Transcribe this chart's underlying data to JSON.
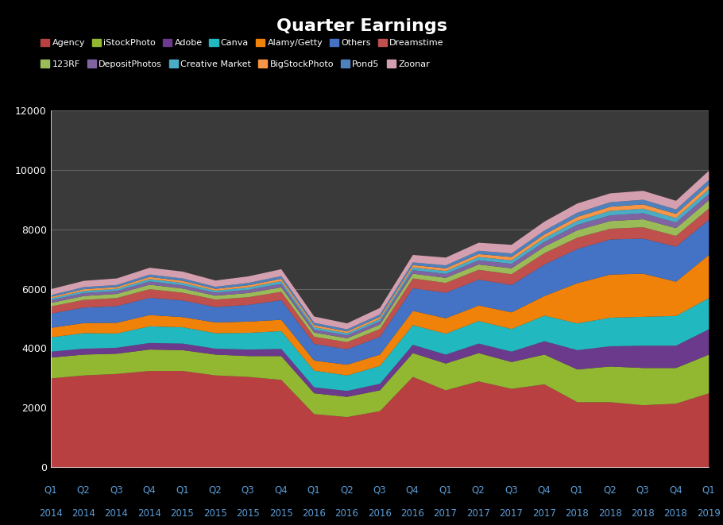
{
  "title": "Quarter Earnings",
  "background_color": "#000000",
  "plot_bg_color": "#3a3a3a",
  "text_color": "#ffffff",
  "grid_color": "#666666",
  "xlabel_color": "#5b9bd5",
  "quarters": [
    "Q1\n2014",
    "Q2\n2014",
    "Q3\n2014",
    "Q4\n2014",
    "Q1\n2015",
    "Q2\n2015",
    "Q3\n2015",
    "Q4\n2015",
    "Q1\n2016",
    "Q2\n2016",
    "Q3\n2016",
    "Q4\n2016",
    "Q1\n2017",
    "Q2\n2017",
    "Q3\n2017",
    "Q4\n2017",
    "Q1\n2018",
    "Q2\n2018",
    "Q3\n2018",
    "Q4\n2018",
    "Q1\n2019"
  ],
  "series": [
    {
      "name": "Agency",
      "color": "#b94040",
      "values": [
        3000,
        3100,
        3150,
        3250,
        3250,
        3100,
        3050,
        2950,
        1800,
        1700,
        1900,
        3050,
        2600,
        2900,
        2650,
        2800,
        2200,
        2200,
        2100,
        2150,
        2500
      ]
    },
    {
      "name": "iStockPhoto",
      "color": "#92b832",
      "values": [
        700,
        700,
        680,
        720,
        700,
        700,
        700,
        800,
        700,
        680,
        700,
        800,
        900,
        950,
        900,
        1000,
        1100,
        1200,
        1250,
        1200,
        1300
      ]
    },
    {
      "name": "Adobe",
      "color": "#6b3a8c",
      "values": [
        200,
        200,
        200,
        220,
        220,
        200,
        220,
        240,
        200,
        200,
        220,
        280,
        300,
        320,
        350,
        450,
        650,
        680,
        750,
        750,
        850
      ]
    },
    {
      "name": "Canva",
      "color": "#22b8c0",
      "values": [
        480,
        520,
        480,
        560,
        550,
        520,
        560,
        600,
        560,
        520,
        600,
        660,
        700,
        760,
        760,
        860,
        900,
        960,
        970,
        1000,
        1050
      ]
    },
    {
      "name": "Alamy/Getty",
      "color": "#f0820a",
      "values": [
        320,
        340,
        360,
        380,
        340,
        360,
        380,
        380,
        340,
        360,
        380,
        480,
        520,
        520,
        560,
        660,
        1350,
        1450,
        1450,
        1150,
        1450
      ]
    },
    {
      "name": "Others",
      "color": "#4472c4",
      "values": [
        480,
        520,
        560,
        580,
        560,
        520,
        560,
        660,
        560,
        520,
        600,
        760,
        860,
        870,
        920,
        1060,
        1150,
        1180,
        1180,
        1180,
        1180
      ]
    },
    {
      "name": "Dreamstime",
      "color": "#c0504d",
      "values": [
        240,
        260,
        270,
        290,
        260,
        250,
        260,
        280,
        240,
        240,
        260,
        330,
        330,
        330,
        360,
        380,
        380,
        360,
        380,
        360,
        380
      ]
    },
    {
      "name": "123RF",
      "color": "#9bbb59",
      "values": [
        120,
        130,
        140,
        150,
        140,
        130,
        140,
        150,
        140,
        130,
        150,
        160,
        170,
        180,
        200,
        220,
        250,
        260,
        270,
        260,
        280
      ]
    },
    {
      "name": "DepositPhotos",
      "color": "#8064a2",
      "values": [
        90,
        100,
        100,
        110,
        110,
        100,
        110,
        120,
        100,
        100,
        110,
        120,
        130,
        140,
        150,
        160,
        180,
        190,
        200,
        190,
        210
      ]
    },
    {
      "name": "Creative Market",
      "color": "#4bacc6",
      "values": [
        60,
        70,
        70,
        80,
        80,
        70,
        80,
        90,
        80,
        70,
        80,
        90,
        100,
        110,
        120,
        130,
        140,
        150,
        155,
        150,
        160
      ]
    },
    {
      "name": "BigStockPhoto",
      "color": "#f79646",
      "values": [
        50,
        60,
        60,
        70,
        70,
        60,
        70,
        80,
        70,
        60,
        70,
        80,
        90,
        100,
        110,
        120,
        130,
        140,
        145,
        140,
        150
      ]
    },
    {
      "name": "Pond5",
      "color": "#4f81bd",
      "values": [
        60,
        70,
        70,
        80,
        80,
        70,
        80,
        90,
        80,
        70,
        80,
        90,
        100,
        110,
        120,
        130,
        140,
        150,
        155,
        150,
        160
      ]
    },
    {
      "name": "Zoonar",
      "color": "#d4a0b0",
      "values": [
        200,
        210,
        220,
        230,
        230,
        210,
        220,
        230,
        210,
        200,
        220,
        250,
        260,
        270,
        290,
        300,
        310,
        300,
        300,
        290,
        310
      ]
    }
  ],
  "ylim": [
    0,
    12000
  ],
  "yticks": [
    0,
    2000,
    4000,
    6000,
    8000,
    10000,
    12000
  ]
}
